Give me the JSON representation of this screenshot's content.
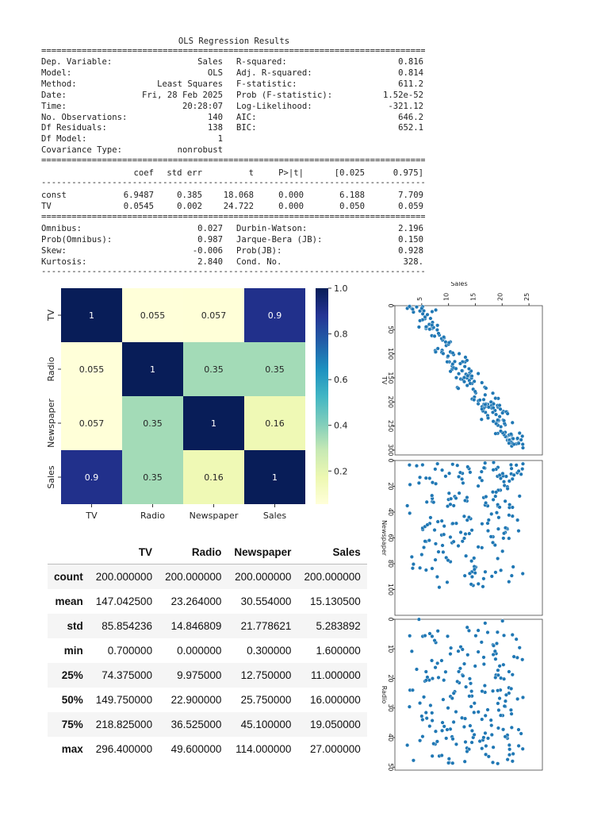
{
  "ols": {
    "title": "OLS Regression Results",
    "separator_eq": "==============================================================================",
    "separator_dash": "------------------------------------------------------------------------------",
    "top_left": [
      {
        "label": "Dep. Variable:",
        "value": "Sales"
      },
      {
        "label": "Model:",
        "value": "OLS"
      },
      {
        "label": "Method:",
        "value": "Least Squares"
      },
      {
        "label": "Date:",
        "value": "Fri, 28 Feb 2025"
      },
      {
        "label": "Time:",
        "value": "20:28:07"
      },
      {
        "label": "No. Observations:",
        "value": "140"
      },
      {
        "label": "Df Residuals:",
        "value": "138"
      },
      {
        "label": "Df Model:",
        "value": "1"
      },
      {
        "label": "Covariance Type:",
        "value": "nonrobust"
      }
    ],
    "top_right": [
      {
        "label": "R-squared:",
        "value": "0.816"
      },
      {
        "label": "Adj. R-squared:",
        "value": "0.814"
      },
      {
        "label": "F-statistic:",
        "value": "611.2"
      },
      {
        "label": "Prob (F-statistic):",
        "value": "1.52e-52"
      },
      {
        "label": "Log-Likelihood:",
        "value": "-321.12"
      },
      {
        "label": "AIC:",
        "value": "646.2"
      },
      {
        "label": "BIC:",
        "value": "652.1"
      }
    ],
    "coef_header": [
      "coef",
      "std err",
      "t",
      "P>|t|",
      "[0.025",
      "0.975]"
    ],
    "coef_rows": [
      {
        "name": "const",
        "values": [
          "6.9487",
          "0.385",
          "18.068",
          "0.000",
          "6.188",
          "7.709"
        ]
      },
      {
        "name": "TV",
        "values": [
          "0.0545",
          "0.002",
          "24.722",
          "0.000",
          "0.050",
          "0.059"
        ]
      }
    ],
    "bottom_left": [
      {
        "label": "Omnibus:",
        "value": "0.027"
      },
      {
        "label": "Prob(Omnibus):",
        "value": "0.987"
      },
      {
        "label": "Skew:",
        "value": "-0.006"
      },
      {
        "label": "Kurtosis:",
        "value": "2.840"
      }
    ],
    "bottom_right": [
      {
        "label": "Durbin-Watson:",
        "value": "2.196"
      },
      {
        "label": "Jarque-Bera (JB):",
        "value": "0.150"
      },
      {
        "label": "Prob(JB):",
        "value": "0.928"
      },
      {
        "label": "Cond. No.",
        "value": "328."
      }
    ]
  },
  "chart_data": [
    {
      "type": "heatmap",
      "title": "",
      "labels": [
        "TV",
        "Radio",
        "Newspaper",
        "Sales"
      ],
      "values": [
        [
          1,
          0.055,
          0.057,
          0.9
        ],
        [
          0.055,
          1,
          0.35,
          0.35
        ],
        [
          0.057,
          0.35,
          1,
          0.16
        ],
        [
          0.9,
          0.35,
          0.16,
          1
        ]
      ],
      "annotations": [
        [
          "1",
          "0.055",
          "0.057",
          "0.9"
        ],
        [
          "0.055",
          "1",
          "0.35",
          "0.35"
        ],
        [
          "0.057",
          "0.35",
          "1",
          "0.16"
        ],
        [
          "0.9",
          "0.35",
          "0.16",
          "1"
        ]
      ],
      "colormap": "YlGnBu",
      "colorbar_ticks": [
        "1.0",
        "0.8",
        "0.6",
        "0.4",
        "0.2"
      ],
      "colorbar_tick_values": [
        1.0,
        0.8,
        0.6,
        0.4,
        0.2
      ],
      "colorbar_range": [
        0.055,
        1.0
      ],
      "colors": [
        "#ffffd9",
        "#edf8b1",
        "#c7e9b4",
        "#7fcdbb",
        "#41b6c4",
        "#1d91c0",
        "#225ea8",
        "#253494",
        "#081d58"
      ]
    },
    {
      "type": "scatter",
      "shared_x_label": "Sales",
      "x_ticks": [
        5,
        10,
        15,
        20,
        25
      ],
      "xlim": [
        0,
        27.5
      ],
      "point_color": "#1f77b4",
      "note": "axes rotated 90 degrees; Sales on top axis, variable increasing downward",
      "panels": [
        {
          "ylabel": "TV",
          "ylim": [
            0,
            310
          ],
          "y_ticks": [
            0,
            50,
            100,
            150,
            200,
            250,
            300
          ],
          "gen": "tv"
        },
        {
          "ylabel": "Newspaper",
          "ylim": [
            0,
            120
          ],
          "y_ticks": [
            0,
            20,
            40,
            60,
            80,
            100
          ],
          "gen": "np"
        },
        {
          "ylabel": "Radio",
          "ylim": [
            0,
            51
          ],
          "y_ticks": [
            0,
            10,
            20,
            30,
            40,
            50
          ],
          "gen": "radio"
        }
      ]
    }
  ],
  "describe": {
    "columns": [
      "TV",
      "Radio",
      "Newspaper",
      "Sales"
    ],
    "rows": [
      {
        "stat": "count",
        "values": [
          "200.000000",
          "200.000000",
          "200.000000",
          "200.000000"
        ]
      },
      {
        "stat": "mean",
        "values": [
          "147.042500",
          "23.264000",
          "30.554000",
          "15.130500"
        ]
      },
      {
        "stat": "std",
        "values": [
          "85.854236",
          "14.846809",
          "21.778621",
          "5.283892"
        ]
      },
      {
        "stat": "min",
        "values": [
          "0.700000",
          "0.000000",
          "0.300000",
          "1.600000"
        ]
      },
      {
        "stat": "25%",
        "values": [
          "74.375000",
          "9.975000",
          "12.750000",
          "11.000000"
        ]
      },
      {
        "stat": "50%",
        "values": [
          "149.750000",
          "22.900000",
          "25.750000",
          "16.000000"
        ]
      },
      {
        "stat": "75%",
        "values": [
          "218.825000",
          "36.525000",
          "45.100000",
          "19.050000"
        ]
      },
      {
        "stat": "max",
        "values": [
          "296.400000",
          "49.600000",
          "114.000000",
          "27.000000"
        ]
      }
    ]
  }
}
